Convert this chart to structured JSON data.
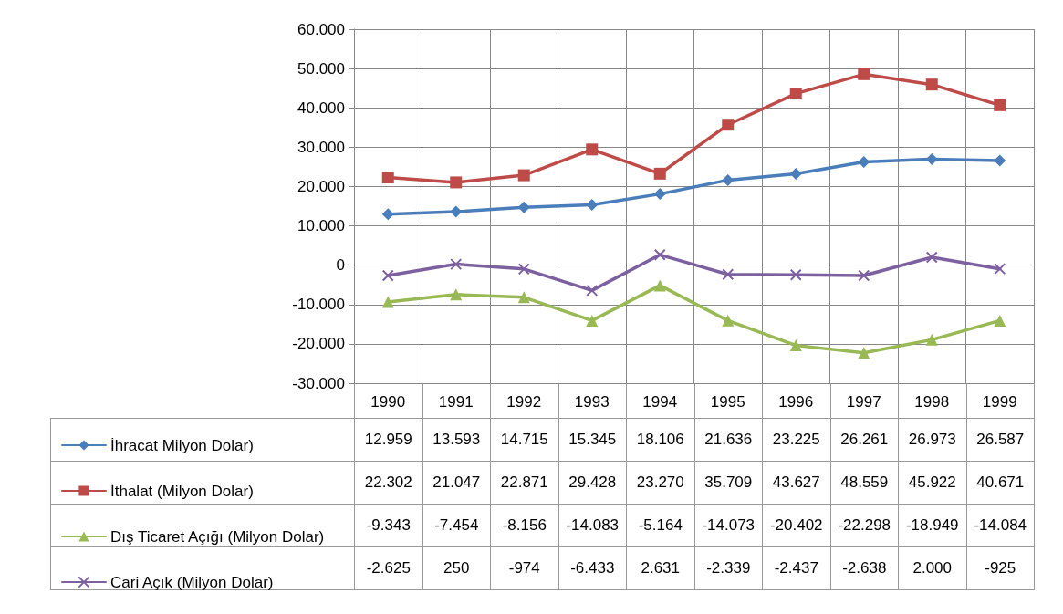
{
  "chart_data": {
    "type": "line",
    "categories": [
      "1990",
      "1991",
      "1992",
      "1993",
      "1994",
      "1995",
      "1996",
      "1997",
      "1998",
      "1999"
    ],
    "series": [
      {
        "name": "İhracat Milyon Dolar)",
        "color": "#4a7ebb",
        "marker": "diamond",
        "values": [
          12959,
          13593,
          14715,
          15345,
          18106,
          21636,
          23225,
          26261,
          26973,
          26587
        ],
        "value_labels": [
          "12.959",
          "13.593",
          "14.715",
          "15.345",
          "18.106",
          "21.636",
          "23.225",
          "26.261",
          "26.973",
          "26.587"
        ]
      },
      {
        "name": "İthalat (Milyon Dolar)",
        "color": "#be4b48",
        "marker": "square",
        "values": [
          22302,
          21047,
          22871,
          29428,
          23270,
          35709,
          43627,
          48559,
          45922,
          40671
        ],
        "value_labels": [
          "22.302",
          "21.047",
          "22.871",
          "29.428",
          "23.270",
          "35.709",
          "43.627",
          "48.559",
          "45.922",
          "40.671"
        ]
      },
      {
        "name": "Dış Ticaret Açığı (Milyon Dolar)",
        "color": "#98b954",
        "marker": "triangle",
        "values": [
          -9343,
          -7454,
          -8156,
          -14083,
          -5164,
          -14073,
          -20402,
          -22298,
          -18949,
          -14084
        ],
        "value_labels": [
          "-9.343",
          "-7.454",
          "-8.156",
          "-14.083",
          "-5.164",
          "-14.073",
          "-20.402",
          "-22.298",
          "-18.949",
          "-14.084"
        ]
      },
      {
        "name": "Cari Açık (Milyon Dolar)",
        "color": "#7d60a0",
        "marker": "cross",
        "values": [
          -2625,
          250,
          -974,
          -6433,
          2631,
          -2339,
          -2437,
          -2638,
          2000,
          -925
        ],
        "value_labels": [
          "-2.625",
          "250",
          "-974",
          "-6.433",
          "2.631",
          "-2.339",
          "-2.437",
          "-2.638",
          "2.000",
          "-925"
        ]
      }
    ],
    "ylim": [
      -30000,
      60000
    ],
    "yticks": [
      {
        "value": -30000,
        "label": "-30.000"
      },
      {
        "value": -20000,
        "label": "-20.000"
      },
      {
        "value": -10000,
        "label": "-10.000"
      },
      0,
      {
        "value": 10000,
        "label": "10.000"
      },
      {
        "value": 20000,
        "label": "20.000"
      },
      {
        "value": 30000,
        "label": "30.000"
      },
      {
        "value": 40000,
        "label": "40.000"
      },
      {
        "value": 50000,
        "label": "50.000"
      },
      {
        "value": 60000,
        "label": "60.000"
      }
    ],
    "grid": true,
    "legend": "bottom",
    "line_style": "solid"
  }
}
